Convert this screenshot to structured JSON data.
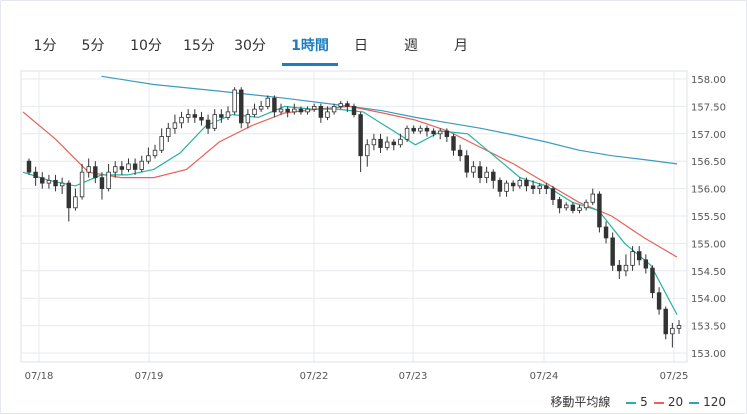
{
  "tabs": [
    {
      "label": "1分",
      "active": false
    },
    {
      "label": "5分",
      "active": false
    },
    {
      "label": "10分",
      "active": false
    },
    {
      "label": "15分",
      "active": false
    },
    {
      "label": "30分",
      "active": false
    },
    {
      "label": "1時間",
      "active": true
    },
    {
      "label": "日",
      "active": false
    },
    {
      "label": "週",
      "active": false
    },
    {
      "label": "月",
      "active": false
    }
  ],
  "legend": {
    "title": "移動平均線",
    "items": [
      {
        "label": "5",
        "color": "#26b3a0"
      },
      {
        "label": "20",
        "color": "#e8615a"
      },
      {
        "label": "120",
        "color": "#3a9cbe"
      }
    ]
  },
  "colors": {
    "active_tab": "#1c7ec2",
    "candle": "#333333",
    "grid": "#e6e9ee"
  },
  "chart_data": {
    "type": "candlestick",
    "ylim": [
      152.9,
      158.1
    ],
    "y_ticks": [
      "158.00",
      "157.50",
      "157.00",
      "156.50",
      "156.00",
      "155.50",
      "155.00",
      "154.50",
      "154.00",
      "153.50",
      "153.00"
    ],
    "x_tick_labels": [
      "07/18",
      "07/19",
      "07/22",
      "07/23",
      "07/24",
      "07/25"
    ],
    "candles": [
      [
        156.5,
        156.3,
        156.55,
        156.25
      ],
      [
        156.3,
        156.2,
        156.4,
        156.05
      ],
      [
        156.2,
        156.1,
        156.3,
        156.0
      ],
      [
        156.1,
        156.15,
        156.25,
        156.0
      ],
      [
        156.15,
        156.05,
        156.25,
        155.95
      ],
      [
        156.05,
        156.1,
        156.2,
        155.9
      ],
      [
        156.1,
        155.65,
        156.15,
        155.4
      ],
      [
        155.65,
        155.85,
        156.0,
        155.6
      ],
      [
        155.85,
        156.3,
        156.45,
        155.8
      ],
      [
        156.3,
        156.4,
        156.55,
        156.2
      ],
      [
        156.4,
        156.2,
        156.5,
        156.1
      ],
      [
        156.2,
        156.0,
        156.3,
        155.8
      ],
      [
        156.0,
        156.3,
        156.45,
        155.95
      ],
      [
        156.3,
        156.4,
        156.5,
        156.2
      ],
      [
        156.4,
        156.35,
        156.5,
        156.25
      ],
      [
        156.35,
        156.45,
        156.55,
        156.3
      ],
      [
        156.45,
        156.35,
        156.55,
        156.25
      ],
      [
        156.35,
        156.5,
        156.6,
        156.3
      ],
      [
        156.5,
        156.6,
        156.75,
        156.45
      ],
      [
        156.6,
        156.7,
        156.8,
        156.55
      ],
      [
        156.7,
        156.95,
        157.1,
        156.65
      ],
      [
        156.95,
        157.1,
        157.2,
        156.85
      ],
      [
        157.1,
        157.2,
        157.35,
        157.0
      ],
      [
        157.2,
        157.3,
        157.4,
        157.1
      ],
      [
        157.3,
        157.35,
        157.45,
        157.2
      ],
      [
        157.35,
        157.3,
        157.45,
        157.2
      ],
      [
        157.3,
        157.25,
        157.4,
        157.15
      ],
      [
        157.25,
        157.1,
        157.35,
        157.0
      ],
      [
        157.1,
        157.35,
        157.45,
        157.05
      ],
      [
        157.35,
        157.3,
        157.45,
        157.2
      ],
      [
        157.3,
        157.4,
        157.5,
        157.25
      ],
      [
        157.4,
        157.8,
        157.85,
        157.35
      ],
      [
        157.8,
        157.2,
        157.85,
        157.1
      ],
      [
        157.2,
        157.35,
        157.45,
        157.1
      ],
      [
        157.35,
        157.45,
        157.55,
        157.3
      ],
      [
        157.45,
        157.5,
        157.6,
        157.4
      ],
      [
        157.5,
        157.65,
        157.7,
        157.45
      ],
      [
        157.65,
        157.4,
        157.7,
        157.3
      ],
      [
        157.4,
        157.45,
        157.55,
        157.35
      ],
      [
        157.45,
        157.4,
        157.5,
        157.3
      ],
      [
        157.4,
        157.45,
        157.55,
        157.35
      ],
      [
        157.45,
        157.4,
        157.5,
        157.35
      ],
      [
        157.4,
        157.45,
        157.5,
        157.35
      ],
      [
        157.45,
        157.5,
        157.55,
        157.4
      ],
      [
        157.5,
        157.3,
        157.55,
        157.2
      ],
      [
        157.3,
        157.4,
        157.5,
        157.25
      ],
      [
        157.4,
        157.5,
        157.55,
        157.35
      ],
      [
        157.5,
        157.55,
        157.6,
        157.45
      ],
      [
        157.55,
        157.5,
        157.6,
        157.4
      ],
      [
        157.5,
        157.35,
        157.55,
        157.3
      ],
      [
        157.35,
        156.6,
        157.4,
        156.3
      ],
      [
        156.6,
        156.8,
        156.9,
        156.4
      ],
      [
        156.8,
        156.9,
        157.0,
        156.7
      ],
      [
        156.9,
        156.75,
        157.0,
        156.65
      ],
      [
        156.75,
        156.85,
        156.95,
        156.7
      ],
      [
        156.85,
        156.8,
        156.9,
        156.7
      ],
      [
        156.8,
        156.9,
        157.0,
        156.75
      ],
      [
        156.9,
        157.1,
        157.15,
        156.85
      ],
      [
        157.1,
        157.05,
        157.15,
        157.0
      ],
      [
        157.05,
        157.1,
        157.15,
        157.0
      ],
      [
        157.1,
        157.05,
        157.15,
        156.95
      ],
      [
        157.05,
        157.0,
        157.1,
        156.95
      ],
      [
        157.0,
        157.05,
        157.1,
        156.9
      ],
      [
        157.05,
        156.95,
        157.1,
        156.85
      ],
      [
        156.95,
        156.7,
        157.0,
        156.6
      ],
      [
        156.7,
        156.6,
        156.8,
        156.5
      ],
      [
        156.6,
        156.3,
        156.7,
        156.2
      ],
      [
        156.3,
        156.4,
        156.5,
        156.2
      ],
      [
        156.4,
        156.2,
        156.5,
        156.1
      ],
      [
        156.2,
        156.3,
        156.4,
        156.1
      ],
      [
        156.3,
        156.15,
        156.35,
        156.0
      ],
      [
        156.15,
        155.95,
        156.2,
        155.85
      ],
      [
        155.95,
        156.1,
        156.15,
        155.85
      ],
      [
        156.1,
        156.05,
        156.15,
        155.95
      ],
      [
        156.05,
        156.15,
        156.2,
        156.0
      ],
      [
        156.15,
        156.05,
        156.2,
        155.95
      ],
      [
        156.05,
        156.0,
        156.15,
        155.9
      ],
      [
        156.0,
        156.05,
        156.1,
        155.9
      ],
      [
        156.05,
        156.0,
        156.1,
        155.9
      ],
      [
        156.0,
        155.8,
        156.05,
        155.7
      ],
      [
        155.8,
        155.65,
        155.85,
        155.55
      ],
      [
        155.65,
        155.7,
        155.75,
        155.6
      ],
      [
        155.7,
        155.6,
        155.75,
        155.55
      ],
      [
        155.6,
        155.65,
        155.7,
        155.55
      ],
      [
        155.65,
        155.75,
        155.8,
        155.6
      ],
      [
        155.75,
        155.9,
        156.0,
        155.7
      ],
      [
        155.9,
        155.3,
        155.95,
        155.2
      ],
      [
        155.3,
        155.1,
        155.4,
        155.0
      ],
      [
        155.1,
        154.6,
        155.2,
        154.5
      ],
      [
        154.6,
        154.5,
        154.7,
        154.35
      ],
      [
        154.5,
        154.6,
        154.8,
        154.4
      ],
      [
        154.6,
        154.85,
        154.95,
        154.5
      ],
      [
        154.85,
        154.7,
        154.95,
        154.6
      ],
      [
        154.7,
        154.55,
        154.8,
        154.45
      ],
      [
        154.55,
        154.1,
        154.6,
        154.0
      ],
      [
        154.1,
        153.8,
        154.2,
        153.7
      ],
      [
        153.8,
        153.35,
        153.85,
        153.25
      ],
      [
        153.35,
        153.45,
        153.55,
        153.1
      ],
      [
        153.45,
        153.5,
        153.6,
        153.35
      ]
    ],
    "ma120": [
      [
        0.12,
        158.05
      ],
      [
        0.2,
        157.9
      ],
      [
        0.3,
        157.78
      ],
      [
        0.4,
        157.65
      ],
      [
        0.5,
        157.5
      ],
      [
        0.55,
        157.42
      ],
      [
        0.6,
        157.3
      ],
      [
        0.65,
        157.2
      ],
      [
        0.7,
        157.1
      ],
      [
        0.75,
        156.98
      ],
      [
        0.8,
        156.85
      ],
      [
        0.85,
        156.7
      ],
      [
        0.9,
        156.6
      ],
      [
        0.95,
        156.53
      ],
      [
        1.0,
        156.45
      ]
    ],
    "ma20": [
      [
        0.0,
        157.4
      ],
      [
        0.05,
        156.9
      ],
      [
        0.1,
        156.3
      ],
      [
        0.15,
        156.2
      ],
      [
        0.2,
        156.2
      ],
      [
        0.25,
        156.35
      ],
      [
        0.3,
        156.85
      ],
      [
        0.35,
        157.15
      ],
      [
        0.4,
        157.38
      ],
      [
        0.45,
        157.45
      ],
      [
        0.5,
        157.5
      ],
      [
        0.55,
        157.38
      ],
      [
        0.6,
        157.25
      ],
      [
        0.65,
        157.05
      ],
      [
        0.7,
        156.75
      ],
      [
        0.75,
        156.45
      ],
      [
        0.8,
        156.1
      ],
      [
        0.85,
        155.75
      ],
      [
        0.9,
        155.5
      ],
      [
        0.95,
        155.1
      ],
      [
        1.0,
        154.75
      ]
    ],
    "ma5": [
      [
        0.0,
        156.3
      ],
      [
        0.04,
        156.15
      ],
      [
        0.08,
        156.05
      ],
      [
        0.12,
        156.25
      ],
      [
        0.16,
        156.25
      ],
      [
        0.2,
        156.35
      ],
      [
        0.24,
        156.65
      ],
      [
        0.28,
        157.15
      ],
      [
        0.32,
        157.35
      ],
      [
        0.36,
        157.3
      ],
      [
        0.4,
        157.5
      ],
      [
        0.44,
        157.45
      ],
      [
        0.48,
        157.45
      ],
      [
        0.52,
        157.4
      ],
      [
        0.56,
        157.1
      ],
      [
        0.6,
        156.8
      ],
      [
        0.64,
        157.05
      ],
      [
        0.68,
        157.0
      ],
      [
        0.72,
        156.6
      ],
      [
        0.76,
        156.2
      ],
      [
        0.8,
        156.05
      ],
      [
        0.84,
        155.75
      ],
      [
        0.88,
        155.6
      ],
      [
        0.92,
        155.0
      ],
      [
        0.96,
        154.6
      ],
      [
        1.0,
        153.7
      ]
    ]
  }
}
